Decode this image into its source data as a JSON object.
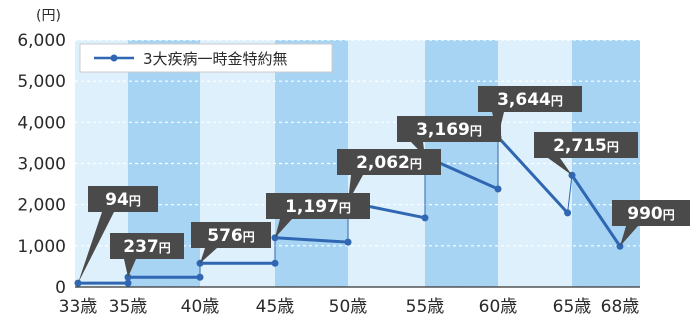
{
  "chart_data": {
    "type": "line",
    "y_unit": "(円)",
    "ylim": [
      0,
      6000
    ],
    "y_ticks": [
      "0",
      "1,000",
      "2,000",
      "3,000",
      "4,000",
      "5,000",
      "6,000"
    ],
    "x_ticks": [
      {
        "age": 33,
        "label": "33歳"
      },
      {
        "age": 35,
        "label": "35歳"
      },
      {
        "age": 40,
        "label": "40歳"
      },
      {
        "age": 45,
        "label": "45歳"
      },
      {
        "age": 50,
        "label": "50歳"
      },
      {
        "age": 55,
        "label": "55歳"
      },
      {
        "age": 60,
        "label": "60歳"
      },
      {
        "age": 65,
        "label": "65歳"
      },
      {
        "age": 68,
        "label": "68歳"
      }
    ],
    "xlim": [
      33,
      68
    ],
    "legend": {
      "label": "3大疾病一時金特約無",
      "placement": "top-left"
    },
    "colors": {
      "line": "#2f67b2",
      "band_dark": "#a8d4f4",
      "band_light": "#def0fb",
      "callout": "#4a4a4a"
    },
    "series": [
      {
        "name": "3大疾病一時金特約無",
        "segments": [
          [
            [
              33,
              94
            ],
            [
              35,
              94
            ]
          ],
          [
            [
              35,
              237
            ],
            [
              40,
              237
            ]
          ],
          [
            [
              40,
              576
            ],
            [
              45,
              576
            ]
          ],
          [
            [
              45,
              1197
            ],
            [
              50,
              1090
            ]
          ],
          [
            [
              50,
              2062
            ],
            [
              55,
              1680
            ]
          ],
          [
            [
              55,
              3169
            ],
            [
              60,
              2380
            ]
          ],
          [
            [
              60,
              3644
            ],
            [
              64.7,
              1800
            ]
          ],
          [
            [
              65,
              2715
            ],
            [
              68,
              990
            ]
          ]
        ]
      }
    ],
    "callouts": [
      {
        "text": "94円",
        "age": 33,
        "value": 94
      },
      {
        "text": "237円",
        "age": 35,
        "value": 237
      },
      {
        "text": "576円",
        "age": 40,
        "value": 576
      },
      {
        "text": "1,197円",
        "age": 45,
        "value": 1197
      },
      {
        "text": "2,062円",
        "age": 50,
        "value": 2062
      },
      {
        "text": "3,169円",
        "age": 55,
        "value": 3169
      },
      {
        "text": "3,644円",
        "age": 60,
        "value": 3644
      },
      {
        "text": "2,715円",
        "age": 65,
        "value": 2715
      },
      {
        "text": "990円",
        "age": 68,
        "value": 990
      }
    ]
  }
}
